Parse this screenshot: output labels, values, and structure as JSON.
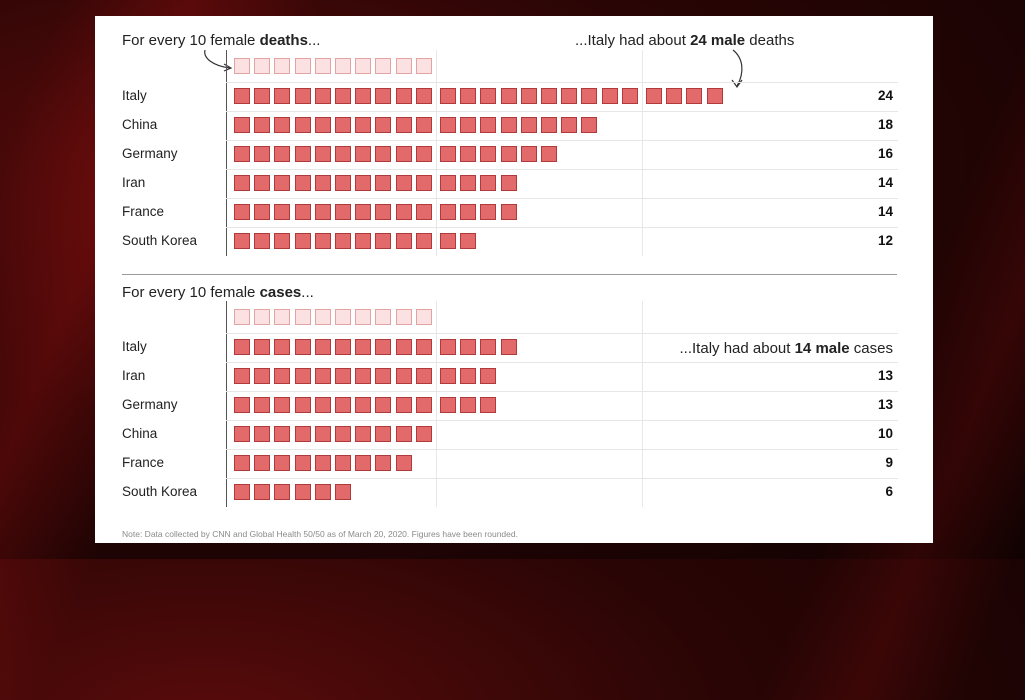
{
  "colors": {
    "male_box": "#e26a6a",
    "male_border": "#b03a3a",
    "ref_box": "#fbe1e1",
    "ref_border": "#e2a3a3"
  },
  "deaths": {
    "title_prefix": "For every 10 female ",
    "title_bold": "deaths",
    "title_suffix": "...",
    "annotation_prefix": "...Italy had about ",
    "annotation_bold": "24 male",
    "annotation_suffix": " deaths"
  },
  "cases": {
    "title_prefix": "For every 10 female ",
    "title_bold": "cases",
    "title_suffix": "...",
    "annotation_prefix": "...Italy had about ",
    "annotation_bold": "14 male",
    "annotation_suffix": " cases"
  },
  "note": "Note: Data collected by CNN and Global Health 50/50 as of March 20, 2020. Figures have been rounded.",
  "chart_data": [
    {
      "type": "bar",
      "reference_value": 10,
      "categories": [
        "Italy",
        "China",
        "Germany",
        "Iran",
        "France",
        "South Korea"
      ],
      "values": [
        24,
        18,
        16,
        14,
        14,
        12
      ],
      "value_labels": [
        "24",
        "18",
        "16",
        "14",
        "14",
        "12"
      ]
    },
    {
      "type": "bar",
      "reference_value": 10,
      "categories": [
        "Italy",
        "Iran",
        "Germany",
        "China",
        "France",
        "South Korea"
      ],
      "values": [
        14,
        13,
        13,
        10,
        9,
        6
      ],
      "value_labels": [
        "",
        "13",
        "13",
        "10",
        "9",
        "6"
      ]
    }
  ]
}
